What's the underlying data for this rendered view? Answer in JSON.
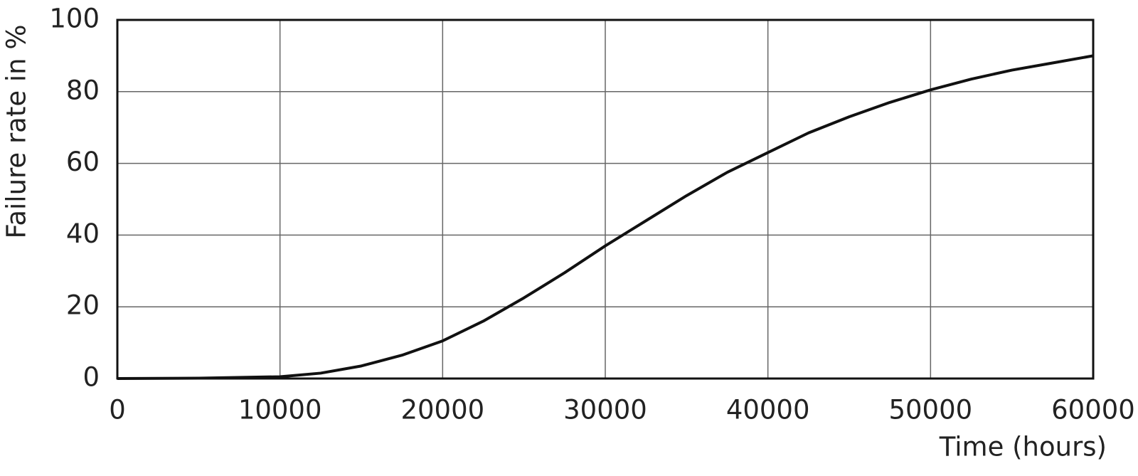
{
  "chart_data": {
    "type": "line",
    "x_label": "Time (hours)",
    "y_label": "Failure rate in %",
    "x": [
      0,
      5000,
      10000,
      12500,
      15000,
      17500,
      20000,
      22500,
      25000,
      27500,
      30000,
      32500,
      35000,
      37500,
      40000,
      42500,
      45000,
      47500,
      50000,
      52500,
      55000,
      57500,
      60000
    ],
    "series": [
      {
        "color": "#111111",
        "values": [
          0,
          0.1,
          0.5,
          1.5,
          3.5,
          6.5,
          10.5,
          16,
          22.5,
          29.5,
          37,
          44,
          51,
          57.5,
          63,
          68.5,
          73,
          77,
          80.5,
          83.5,
          86,
          88,
          90
        ]
      }
    ],
    "xlim": [
      0,
      60000
    ],
    "xticks": [
      0,
      10000,
      20000,
      30000,
      40000,
      50000,
      60000
    ],
    "ylim": [
      0,
      100
    ],
    "yticks": [
      0,
      20,
      40,
      60,
      80,
      100
    ],
    "grid": true
  }
}
